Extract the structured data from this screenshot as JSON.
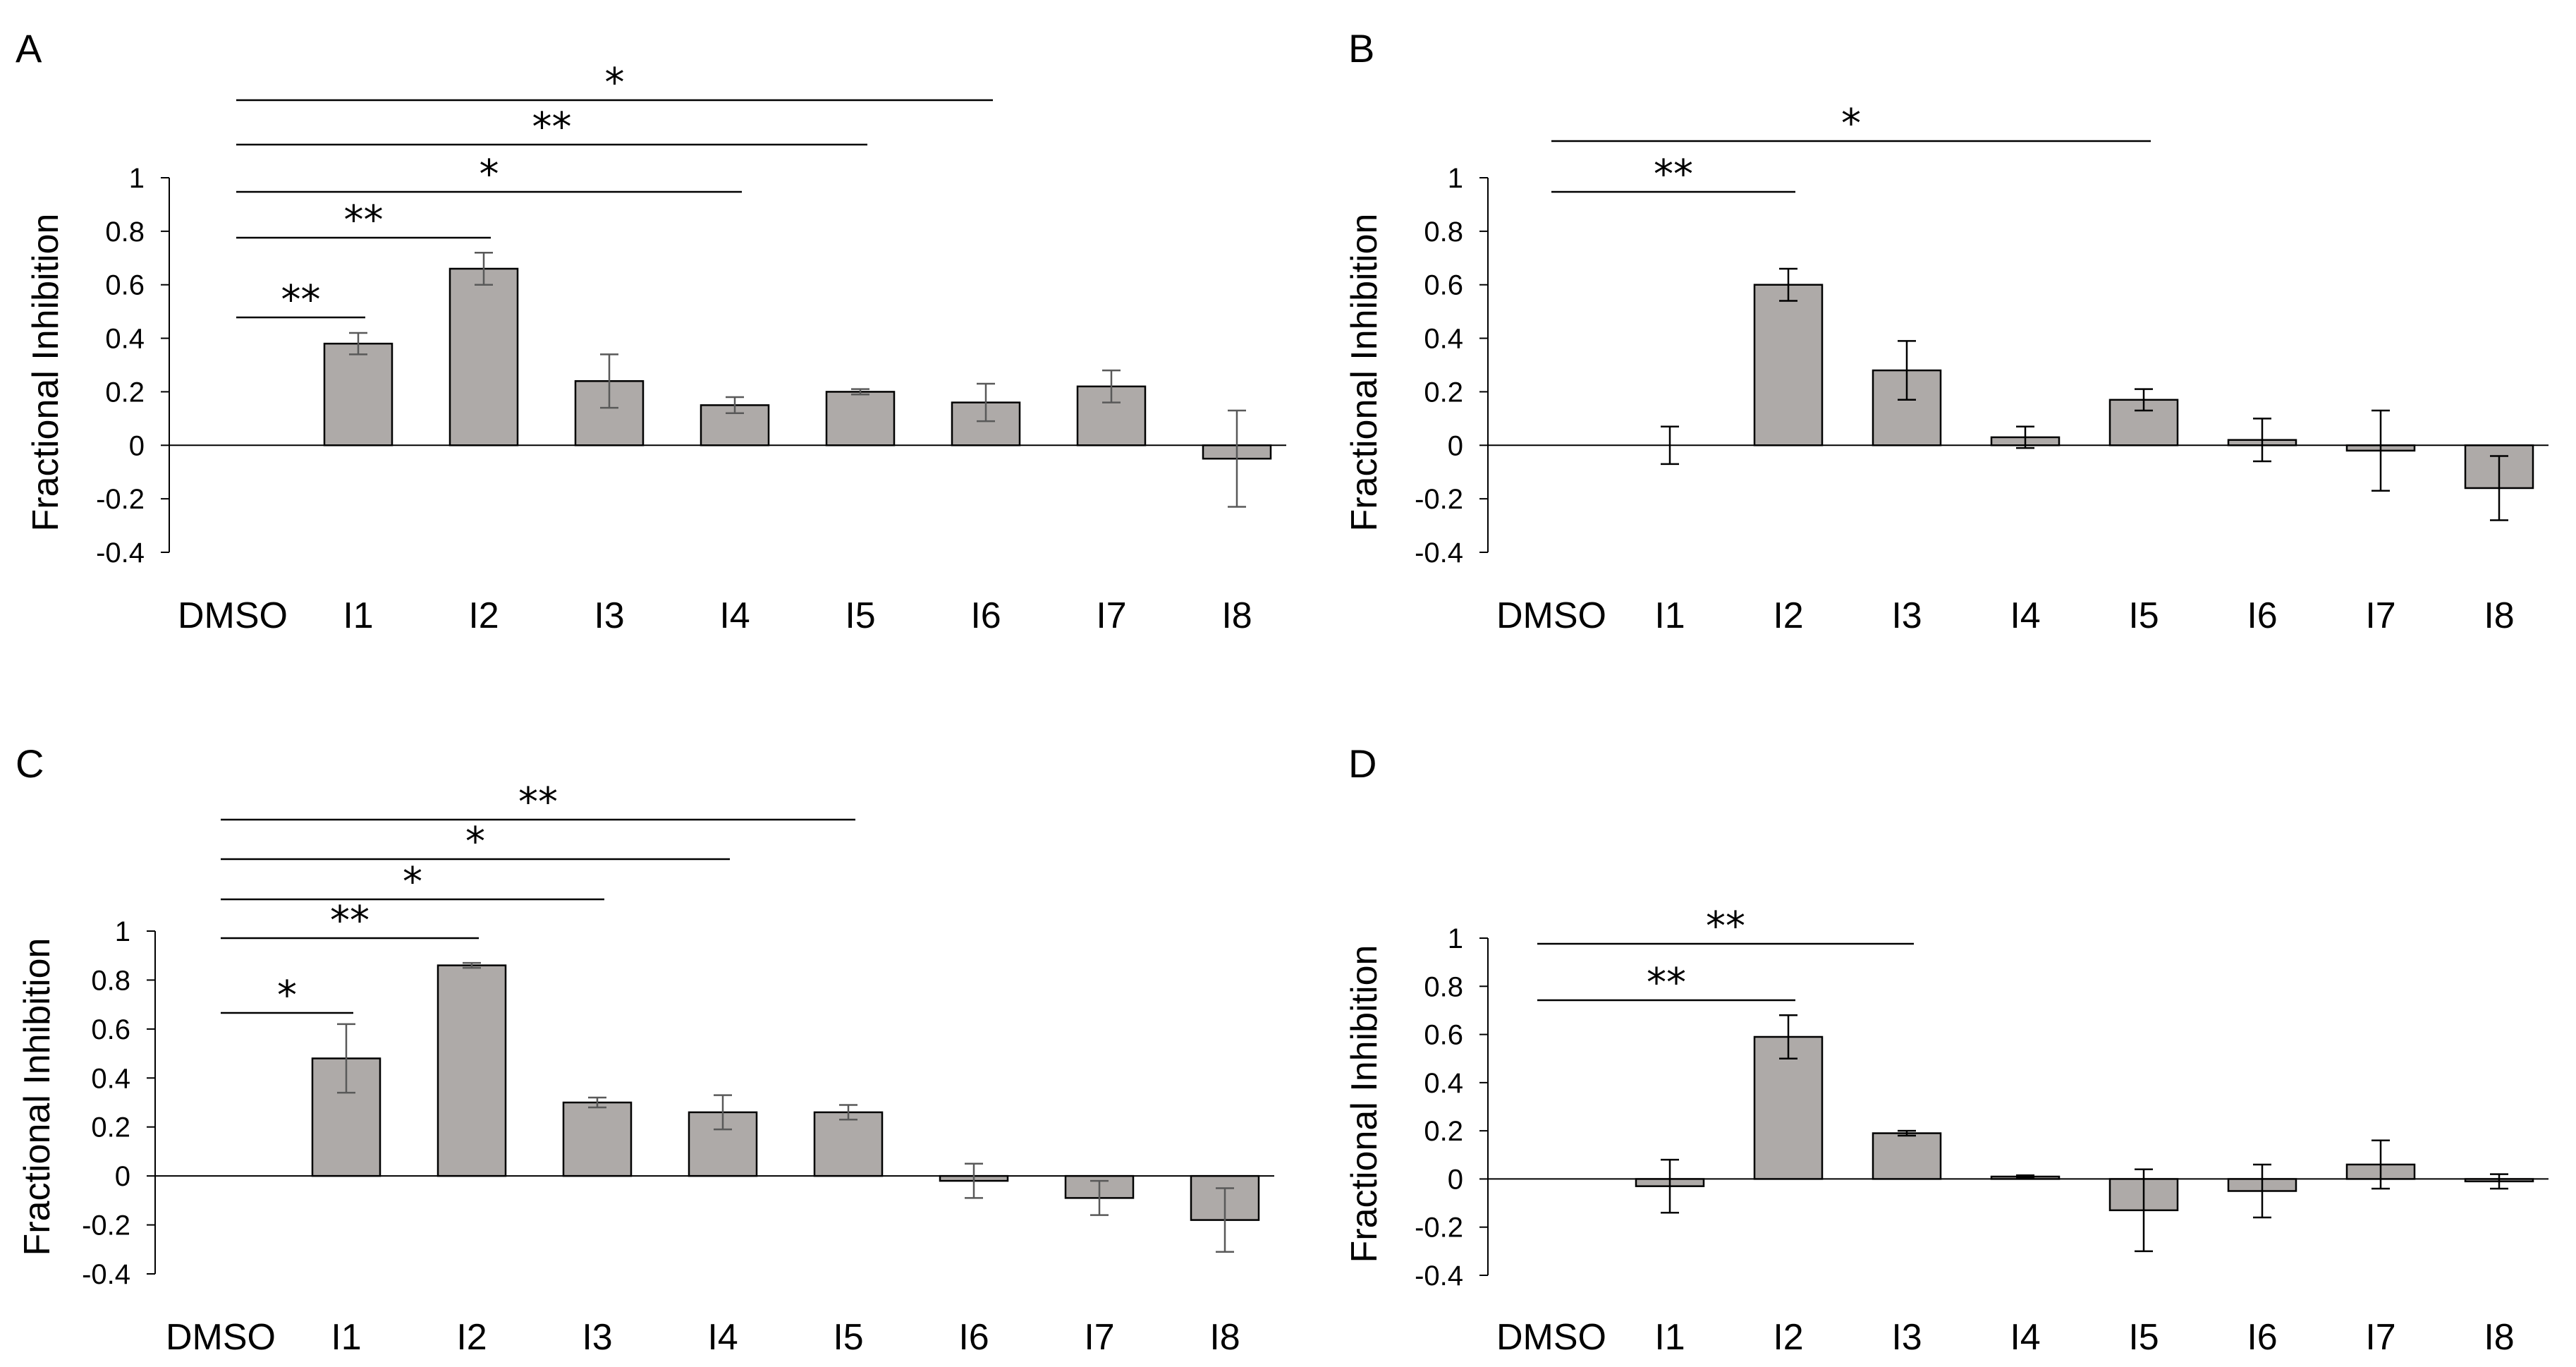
{
  "chart_data": [
    {
      "panel": "A",
      "type": "bar",
      "ylabel": "Fractional Inhibition",
      "ylim": [
        -0.4,
        1
      ],
      "yticks": [
        "1",
        "0.8",
        "0.6",
        "0.4",
        "0.2",
        "0",
        "-0.2",
        "-0.4"
      ],
      "grid": false,
      "categories": [
        "DMSO",
        "I1",
        "I2",
        "I3",
        "I4",
        "I5",
        "I6",
        "I7",
        "I8"
      ],
      "values": [
        0,
        0.38,
        0.66,
        0.24,
        0.15,
        0.2,
        0.16,
        0.22,
        -0.05
      ],
      "errors": [
        0,
        0.04,
        0.06,
        0.1,
        0.03,
        0.01,
        0.07,
        0.06,
        0.18
      ],
      "significance": [
        {
          "from": "DMSO",
          "to": "I6",
          "label": "*"
        },
        {
          "from": "DMSO",
          "to": "I5",
          "label": "**"
        },
        {
          "from": "DMSO",
          "to": "I4",
          "label": "*"
        },
        {
          "from": "DMSO",
          "to": "I2",
          "label": "**"
        },
        {
          "from": "DMSO",
          "to": "I1",
          "label": "**"
        }
      ],
      "bar_color": "#aeaaa8",
      "edge_color": "#000000",
      "error_color": "#595959"
    },
    {
      "panel": "B",
      "type": "bar",
      "ylabel": "Fractional Inhibition",
      "ylim": [
        -0.4,
        1
      ],
      "yticks": [
        "1",
        "0.8",
        "0.6",
        "0.4",
        "0.2",
        "0",
        "-0.2",
        "-0.4"
      ],
      "grid": false,
      "categories": [
        "DMSO",
        "I1",
        "I2",
        "I3",
        "I4",
        "I5",
        "I6",
        "I7",
        "I8"
      ],
      "values": [
        0,
        0,
        0.6,
        0.28,
        0.03,
        0.17,
        0.02,
        -0.02,
        -0.16
      ],
      "errors": [
        0,
        0.07,
        0.06,
        0.11,
        0.04,
        0.04,
        0.08,
        0.15,
        0.12
      ],
      "significance": [
        {
          "from": "DMSO",
          "to": "I5",
          "label": "*"
        },
        {
          "from": "DMSO",
          "to": "I2",
          "label": "**"
        }
      ],
      "bar_color": "#aeaaa8",
      "edge_color": "#000000",
      "error_color": "#000000"
    },
    {
      "panel": "C",
      "type": "bar",
      "ylabel": "Fractional Inhibition",
      "ylim": [
        -0.4,
        1
      ],
      "yticks": [
        "1",
        "0.8",
        "0.6",
        "0.4",
        "0.2",
        "0",
        "-0.2",
        "-0.4"
      ],
      "grid": false,
      "categories": [
        "DMSO",
        "I1",
        "I2",
        "I3",
        "I4",
        "I5",
        "I6",
        "I7",
        "I8"
      ],
      "values": [
        0,
        0.48,
        0.86,
        0.3,
        0.26,
        0.26,
        -0.02,
        -0.09,
        -0.18
      ],
      "errors": [
        0,
        0.14,
        0.01,
        0.02,
        0.07,
        0.03,
        0.07,
        0.07,
        0.13
      ],
      "significance": [
        {
          "from": "DMSO",
          "to": "I5",
          "label": "**"
        },
        {
          "from": "DMSO",
          "to": "I4",
          "label": "*"
        },
        {
          "from": "DMSO",
          "to": "I3",
          "label": "*"
        },
        {
          "from": "DMSO",
          "to": "I2",
          "label": "**"
        },
        {
          "from": "DMSO",
          "to": "I1",
          "label": "*"
        }
      ],
      "bar_color": "#aeaaa8",
      "edge_color": "#000000",
      "error_color": "#595959"
    },
    {
      "panel": "D",
      "type": "bar",
      "ylabel": "Fractional Inhibition",
      "ylim": [
        -0.4,
        1
      ],
      "yticks": [
        "1",
        "0.8",
        "0.6",
        "0.4",
        "0.2",
        "0",
        "-0.2",
        "-0.4"
      ],
      "grid": false,
      "categories": [
        "DMSO",
        "I1",
        "I2",
        "I3",
        "I4",
        "I5",
        "I6",
        "I7",
        "I8"
      ],
      "values": [
        0,
        -0.03,
        0.59,
        0.19,
        0.01,
        -0.13,
        -0.05,
        0.06,
        -0.01
      ],
      "errors": [
        0,
        0.11,
        0.09,
        0.01,
        0.005,
        0.17,
        0.11,
        0.1,
        0.03
      ],
      "significance": [
        {
          "from": "DMSO",
          "to": "I3",
          "label": "**"
        },
        {
          "from": "DMSO",
          "to": "I2",
          "label": "**"
        }
      ],
      "bar_color": "#aeaaa8",
      "edge_color": "#000000",
      "error_color": "#000000"
    }
  ]
}
